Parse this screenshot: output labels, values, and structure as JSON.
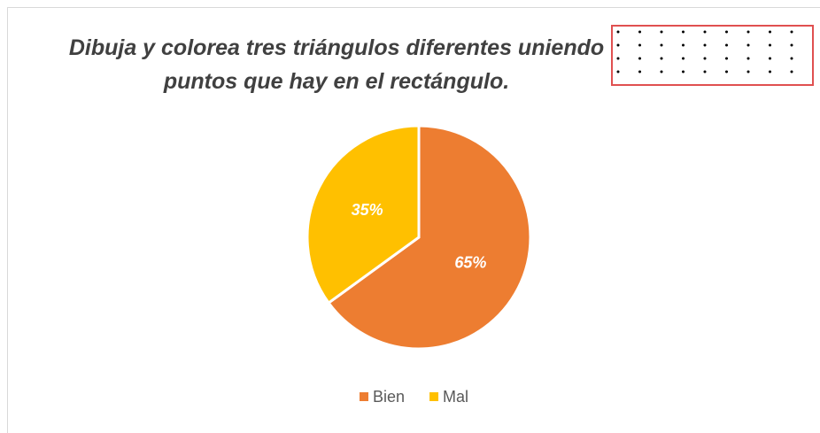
{
  "chart_data": {
    "type": "pie",
    "title": [
      "Dibuja y colorea tres triángulos diferentes uniendo",
      "puntos que hay en el rectángulo."
    ],
    "categories": [
      "Bien",
      "Mal"
    ],
    "values": [
      65,
      35
    ],
    "value_labels": [
      "65%",
      "35%"
    ],
    "colors": [
      "#ED7D31",
      "#FFC000"
    ],
    "legend": "bottom"
  }
}
